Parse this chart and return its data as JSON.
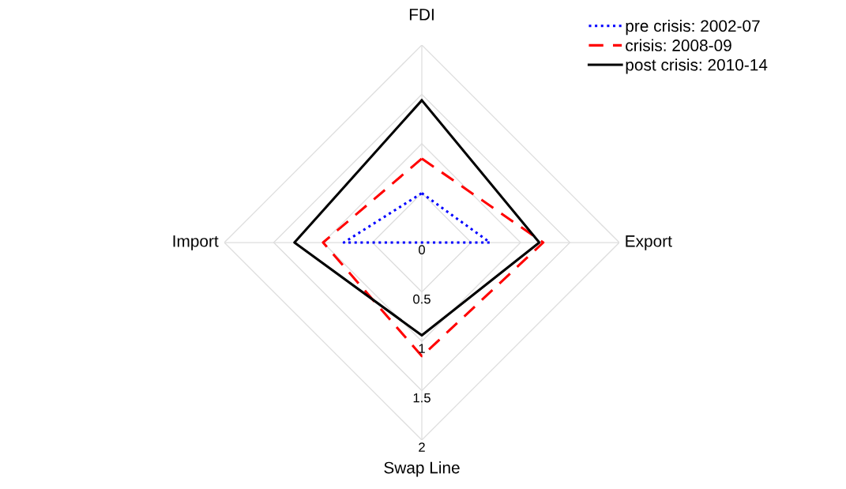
{
  "chart_data": {
    "type": "radar",
    "categories": [
      "FDI",
      "Export",
      "Swap Line",
      "Import"
    ],
    "ylim": [
      0,
      2
    ],
    "yticks": [
      0,
      0.5,
      1,
      1.5,
      2
    ],
    "grid": true,
    "legend": "top right",
    "series": [
      {
        "name": "pre crisis: 2002-07",
        "color": "#0000ff",
        "line_style": "dotted",
        "values": [
          0.5,
          0.69,
          0,
          0.79
        ]
      },
      {
        "name": "crisis: 2008-09",
        "color": "#ff0000",
        "line_style": "dashed",
        "values": [
          0.85,
          1.23,
          1.15,
          1.0
        ]
      },
      {
        "name": "post crisis: 2010-14",
        "color": "#000000",
        "line_style": "solid",
        "values": [
          1.44,
          1.19,
          0.94,
          1.29
        ]
      }
    ]
  }
}
